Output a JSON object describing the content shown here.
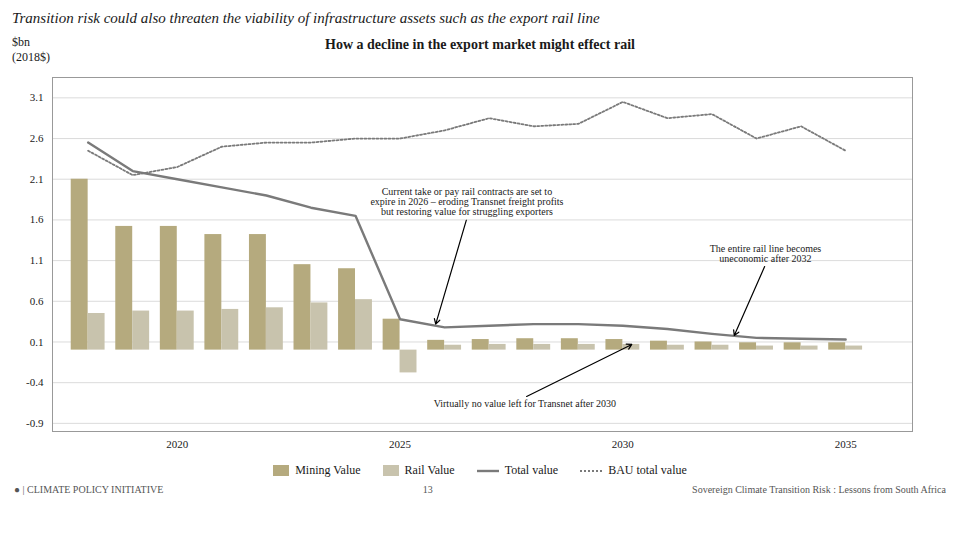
{
  "chart_data": {
    "type": "bar",
    "title": "Transition risk could also threaten the viability of infrastructure assets such as the export rail line",
    "subtitle": "How a decline in the export market might effect rail",
    "y_label": [
      "$bn",
      "(2018$)"
    ],
    "x": [
      2018,
      2019,
      2020,
      2021,
      2022,
      2023,
      2024,
      2025,
      2026,
      2027,
      2028,
      2029,
      2030,
      2031,
      2032,
      2033,
      2034,
      2035
    ],
    "xlim": [
      2017.2,
      2036.5
    ],
    "xticks": [
      2020,
      2025,
      2030,
      2035
    ],
    "ylim": [
      -1.0,
      3.35
    ],
    "yticks": [
      3.1,
      2.6,
      2.1,
      1.6,
      1.1,
      0.6,
      0.1,
      -0.4,
      -0.9
    ],
    "grid": true,
    "legend": "bottom",
    "series": [
      {
        "name": "Mining Value",
        "type": "bar",
        "color": "#b5aa7e",
        "values": [
          2.1,
          1.52,
          1.52,
          1.42,
          1.42,
          1.05,
          1.0,
          0.38,
          0.12,
          0.13,
          0.14,
          0.14,
          0.13,
          0.11,
          0.1,
          0.09,
          0.09,
          0.09
        ]
      },
      {
        "name": "Rail Value",
        "type": "bar",
        "color": "#c8c3ad",
        "values": [
          0.45,
          0.48,
          0.48,
          0.5,
          0.52,
          0.58,
          0.62,
          -0.28,
          0.06,
          0.07,
          0.07,
          0.07,
          0.07,
          0.06,
          0.06,
          0.05,
          0.05,
          0.05
        ]
      },
      {
        "name": "Total value",
        "type": "line",
        "color": "#7a7a7a",
        "line_style": "solid",
        "values": [
          2.55,
          2.2,
          2.1,
          2.0,
          1.9,
          1.75,
          1.65,
          0.38,
          0.28,
          0.3,
          0.32,
          0.32,
          0.3,
          0.26,
          0.2,
          0.15,
          0.14,
          0.13
        ]
      },
      {
        "name": "BAU total value",
        "type": "line",
        "color": "#7a7a7a",
        "line_style": "dotted",
        "values": [
          2.45,
          2.15,
          2.25,
          2.5,
          2.55,
          2.55,
          2.6,
          2.6,
          2.7,
          2.85,
          2.75,
          2.78,
          3.05,
          2.85,
          2.9,
          2.6,
          2.75,
          2.45
        ]
      }
    ],
    "annotations": [
      {
        "text": "Current take or pay rail contracts are set to\nexpire in 2026 – eroding Transnet freight profits\nbut restoring value for struggling exporters",
        "x": 2025.8,
        "y": 0.32,
        "text_x": 2026.5,
        "text_y": 1.62
      },
      {
        "text": "The entire rail line becomes\nuneconomic after 2032",
        "x": 2032.5,
        "y": 0.18,
        "text_x": 2033.2,
        "text_y": 1.05
      },
      {
        "text": "Virtually no value left for Transnet after 2030",
        "x": 2030.2,
        "y": 0.07,
        "text_x": 2027.8,
        "text_y": -0.58
      }
    ],
    "footer": [
      "● | CLIMATE POLICY INITIATIVE",
      "13",
      "Sovereign Climate Transition Risk : Lessons from South Africa"
    ]
  }
}
